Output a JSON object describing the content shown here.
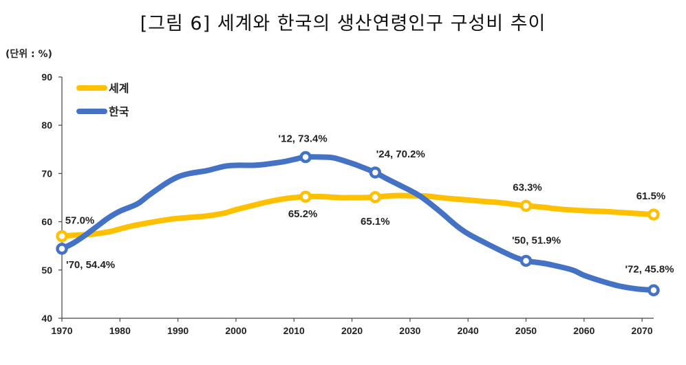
{
  "chart_data": {
    "type": "line",
    "title": "[그림 6] 세계와 한국의 생산연령인구 구성비 추이",
    "unit": "(단위 : %)",
    "xlabel": "",
    "ylabel": "",
    "xlim": [
      1970,
      2072
    ],
    "ylim": [
      40,
      90
    ],
    "x_ticks": [
      "1970",
      "1980",
      "1990",
      "2000",
      "2010",
      "2020",
      "2030",
      "2040",
      "2050",
      "2060",
      "2070"
    ],
    "y_ticks": [
      "40",
      "50",
      "60",
      "70",
      "80",
      "90"
    ],
    "legend": [
      "세계",
      "한국"
    ],
    "series": [
      {
        "name": "세계",
        "color": "#FFC000",
        "points": [
          [
            1970,
            57.0
          ],
          [
            1972,
            57.2
          ],
          [
            1975,
            57.4
          ],
          [
            1978,
            57.9
          ],
          [
            1980,
            58.5
          ],
          [
            1982,
            59.1
          ],
          [
            1985,
            59.8
          ],
          [
            1988,
            60.4
          ],
          [
            1990,
            60.7
          ],
          [
            1993,
            61.0
          ],
          [
            1995,
            61.2
          ],
          [
            1998,
            61.8
          ],
          [
            2000,
            62.5
          ],
          [
            2003,
            63.4
          ],
          [
            2005,
            64.0
          ],
          [
            2008,
            64.7
          ],
          [
            2010,
            65.0
          ],
          [
            2012,
            65.2
          ],
          [
            2015,
            65.2
          ],
          [
            2018,
            65.0
          ],
          [
            2020,
            65.0
          ],
          [
            2022,
            65.0
          ],
          [
            2024,
            65.1
          ],
          [
            2027,
            65.4
          ],
          [
            2030,
            65.4
          ],
          [
            2033,
            65.3
          ],
          [
            2036,
            64.9
          ],
          [
            2040,
            64.5
          ],
          [
            2043,
            64.2
          ],
          [
            2046,
            63.9
          ],
          [
            2048,
            63.6
          ],
          [
            2050,
            63.3
          ],
          [
            2053,
            63.0
          ],
          [
            2056,
            62.6
          ],
          [
            2060,
            62.3
          ],
          [
            2064,
            62.1
          ],
          [
            2068,
            61.8
          ],
          [
            2072,
            61.5
          ]
        ],
        "markers": [
          {
            "x": 1970,
            "y": 57.0,
            "label": "57.0%"
          },
          {
            "x": 2012,
            "y": 65.2,
            "label": "65.2%"
          },
          {
            "x": 2024,
            "y": 65.1,
            "label": "65.1%"
          },
          {
            "x": 2050,
            "y": 63.3,
            "label": "63.3%"
          },
          {
            "x": 2072,
            "y": 61.5,
            "label": "61.5%"
          }
        ]
      },
      {
        "name": "한국",
        "color": "#4472C4",
        "points": [
          [
            1970,
            54.4
          ],
          [
            1972,
            55.6
          ],
          [
            1974,
            57.2
          ],
          [
            1976,
            59.0
          ],
          [
            1978,
            60.8
          ],
          [
            1980,
            62.2
          ],
          [
            1983,
            63.7
          ],
          [
            1985,
            65.5
          ],
          [
            1988,
            68.0
          ],
          [
            1990,
            69.3
          ],
          [
            1992,
            70.0
          ],
          [
            1995,
            70.6
          ],
          [
            1998,
            71.5
          ],
          [
            2000,
            71.7
          ],
          [
            2003,
            71.7
          ],
          [
            2005,
            71.9
          ],
          [
            2008,
            72.4
          ],
          [
            2010,
            72.9
          ],
          [
            2012,
            73.4
          ],
          [
            2015,
            73.4
          ],
          [
            2017,
            73.2
          ],
          [
            2020,
            72.1
          ],
          [
            2022,
            71.2
          ],
          [
            2024,
            70.2
          ],
          [
            2026,
            68.9
          ],
          [
            2028,
            67.7
          ],
          [
            2030,
            66.5
          ],
          [
            2032,
            65.1
          ],
          [
            2035,
            62.3
          ],
          [
            2038,
            59.2
          ],
          [
            2040,
            57.5
          ],
          [
            2043,
            55.6
          ],
          [
            2046,
            53.8
          ],
          [
            2048,
            52.7
          ],
          [
            2050,
            51.9
          ],
          [
            2053,
            51.4
          ],
          [
            2055,
            50.9
          ],
          [
            2058,
            50.0
          ],
          [
            2060,
            48.9
          ],
          [
            2063,
            47.7
          ],
          [
            2066,
            46.7
          ],
          [
            2069,
            46.1
          ],
          [
            2072,
            45.8
          ]
        ],
        "markers": [
          {
            "x": 1970,
            "y": 54.4,
            "label": "'70, 54.4%"
          },
          {
            "x": 2012,
            "y": 73.4,
            "label": "'12, 73.4%"
          },
          {
            "x": 2024,
            "y": 70.2,
            "label": "'24, 70.2%"
          },
          {
            "x": 2050,
            "y": 51.9,
            "label": "'50, 51.9%"
          },
          {
            "x": 2072,
            "y": 45.8,
            "label": "'72, 45.8%"
          }
        ]
      }
    ]
  }
}
